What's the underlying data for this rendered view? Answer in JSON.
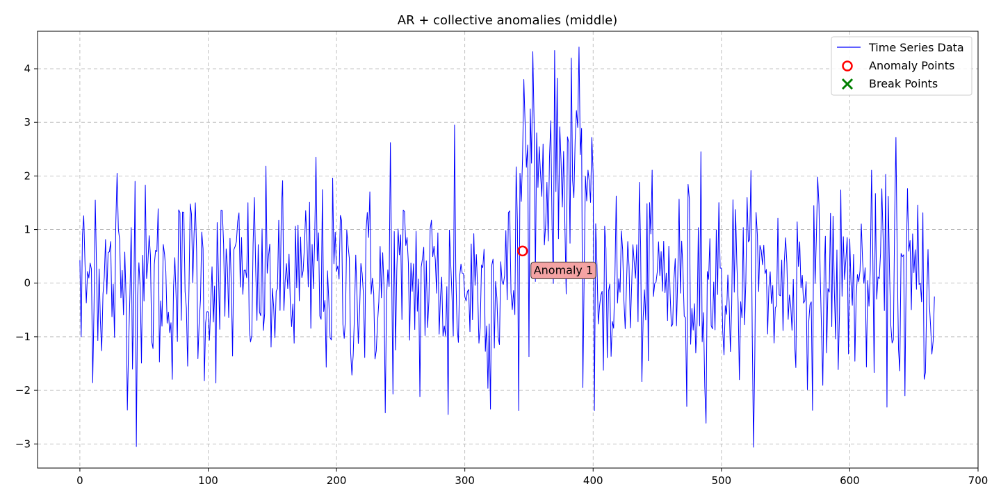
{
  "chart_data": {
    "type": "line",
    "title": "AR + collective anomalies (middle)",
    "xlabel": "",
    "ylabel": "",
    "xlim": [
      -33,
      700
    ],
    "ylim": [
      -3.45,
      4.7
    ],
    "xticks": [
      0,
      100,
      200,
      300,
      400,
      500,
      600,
      700
    ],
    "yticks": [
      -3,
      -2,
      -1,
      0,
      1,
      2,
      3,
      4
    ],
    "grid": true,
    "legend_position": "top-right",
    "n_points": 667,
    "anomaly_window": [
      340,
      400
    ],
    "series": [
      {
        "name": "Time Series Data",
        "color": "#0000ff",
        "style": "line",
        "key_points": [
          {
            "x": 0,
            "y": 0.43
          },
          {
            "x": 1,
            "y": -1.0
          },
          {
            "x": 2,
            "y": 0.9
          },
          {
            "x": 12,
            "y": 1.55
          },
          {
            "x": 29,
            "y": 2.05
          },
          {
            "x": 43,
            "y": 1.9
          },
          {
            "x": 44,
            "y": -3.05
          },
          {
            "x": 90,
            "y": 1.5
          },
          {
            "x": 184,
            "y": 2.35
          },
          {
            "x": 238,
            "y": -2.42
          },
          {
            "x": 242,
            "y": 2.62
          },
          {
            "x": 265,
            "y": -2.12
          },
          {
            "x": 287,
            "y": -2.45
          },
          {
            "x": 292,
            "y": 2.95
          },
          {
            "x": 320,
            "y": -2.35
          },
          {
            "x": 342,
            "y": -2.38
          },
          {
            "x": 346,
            "y": 3.8
          },
          {
            "x": 353,
            "y": 4.32
          },
          {
            "x": 383,
            "y": 4.2
          },
          {
            "x": 392,
            "y": -1.95
          },
          {
            "x": 401,
            "y": -2.38
          },
          {
            "x": 473,
            "y": -2.3
          },
          {
            "x": 484,
            "y": 2.45
          },
          {
            "x": 636,
            "y": 2.72
          },
          {
            "x": 643,
            "y": -2.1
          },
          {
            "x": 666,
            "y": -0.25
          }
        ]
      },
      {
        "name": "Anomaly Points",
        "color": "#ff0000",
        "style": "open-circle",
        "points": [
          {
            "x": 345,
            "y": 0.6
          }
        ]
      },
      {
        "name": "Break Points",
        "color": "#008000",
        "style": "x-marker",
        "points": []
      }
    ],
    "annotations": [
      {
        "text": "Anomaly 1",
        "x": 345,
        "y": 0.6,
        "box_color": "#f4a3a3"
      }
    ]
  }
}
